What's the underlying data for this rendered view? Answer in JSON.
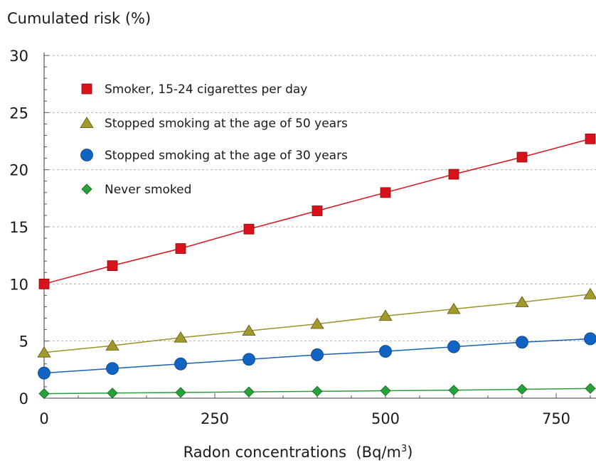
{
  "chart_data": {
    "type": "line",
    "ylabel": "Cumulated risk (%)",
    "xlabel": "Radon concentrations",
    "xlabel_unit_prefix": "(Bq/m",
    "xlabel_unit_sup": "3",
    "xlabel_unit_suffix": ")",
    "xlim": [
      0,
      800
    ],
    "ylim": [
      0,
      30
    ],
    "x_ticks": [
      "0",
      "250",
      "500",
      "750"
    ],
    "x_tick_values": [
      0,
      250,
      500,
      750
    ],
    "y_ticks": [
      "0",
      "5",
      "10",
      "15",
      "20",
      "25",
      "30"
    ],
    "y_tick_values": [
      0,
      5,
      10,
      15,
      20,
      25,
      30
    ],
    "grid": "dashed horizontal",
    "legend_position": "top-left",
    "x": [
      0,
      100,
      200,
      300,
      400,
      500,
      600,
      700,
      800
    ],
    "series": [
      {
        "name": "Smoker, 15-24 cigarettes per day",
        "marker": "square",
        "color": "#d9111b",
        "line_color": "#d9111b",
        "values": [
          10.0,
          11.6,
          13.1,
          14.8,
          16.4,
          18.0,
          19.6,
          21.1,
          22.7
        ]
      },
      {
        "name": "Stopped smoking at the age of 50 years",
        "marker": "triangle",
        "color": "#a39a2b",
        "line_color": "#9c9226",
        "values": [
          4.0,
          4.6,
          5.3,
          5.9,
          6.5,
          7.2,
          7.8,
          8.4,
          9.1
        ]
      },
      {
        "name": "Stopped smoking at the age of 30 years",
        "marker": "circle",
        "color": "#1264c4",
        "line_color": "#1a5fb0",
        "values": [
          2.2,
          2.6,
          3.0,
          3.4,
          3.8,
          4.1,
          4.5,
          4.9,
          5.2
        ]
      },
      {
        "name": "Never smoked",
        "marker": "diamond",
        "color": "#27a23a",
        "line_color": "#2e9c3d",
        "values": [
          0.4,
          0.45,
          0.5,
          0.55,
          0.6,
          0.65,
          0.7,
          0.78,
          0.85
        ]
      }
    ]
  }
}
